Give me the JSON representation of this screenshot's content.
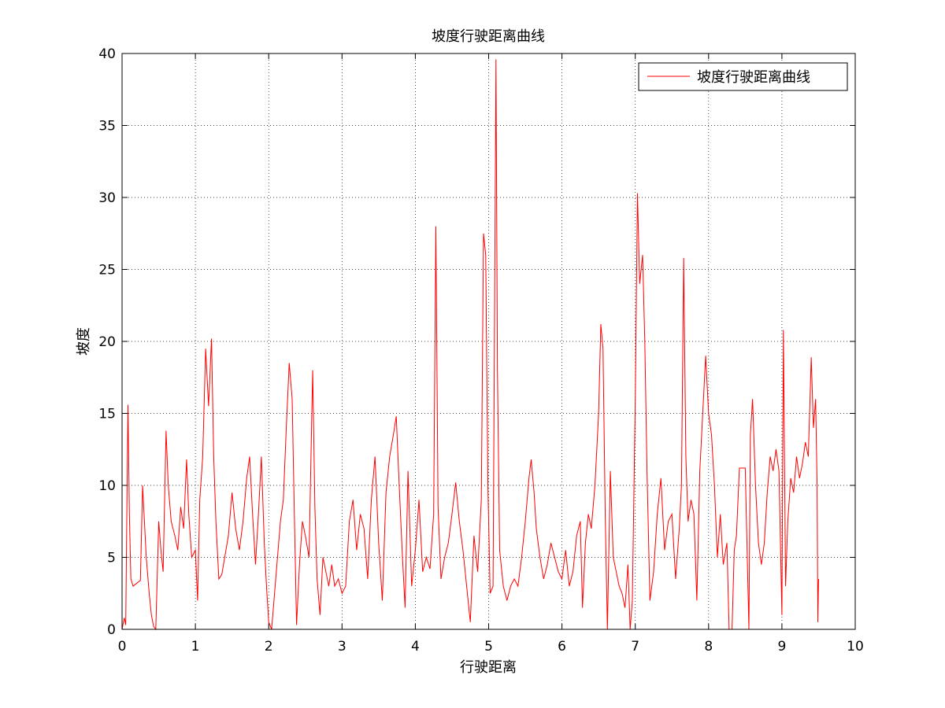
{
  "chart_data": {
    "type": "line",
    "title": "坡度行驶距离曲线",
    "xlabel": "行驶距离",
    "ylabel": "坡度",
    "xlim": [
      0,
      10
    ],
    "ylim": [
      0,
      40
    ],
    "xticks": [
      "0",
      "1",
      "2",
      "3",
      "4",
      "5",
      "6",
      "7",
      "8",
      "9",
      "10"
    ],
    "yticks": [
      "0",
      "5",
      "10",
      "15",
      "20",
      "25",
      "30",
      "35",
      "40"
    ],
    "grid": true,
    "legend_position": "top-right",
    "series": [
      {
        "name": "坡度行驶距离曲线",
        "color": "#ff0000",
        "points": [
          [
            0.0,
            0.0
          ],
          [
            0.03,
            0.8
          ],
          [
            0.05,
            0.3
          ],
          [
            0.08,
            15.6
          ],
          [
            0.1,
            8.0
          ],
          [
            0.12,
            3.5
          ],
          [
            0.15,
            3.0
          ],
          [
            0.2,
            3.2
          ],
          [
            0.25,
            3.4
          ],
          [
            0.28,
            10.0
          ],
          [
            0.3,
            8.0
          ],
          [
            0.33,
            5.0
          ],
          [
            0.37,
            2.5
          ],
          [
            0.4,
            1.0
          ],
          [
            0.43,
            0.2
          ],
          [
            0.46,
            0.0
          ],
          [
            0.5,
            7.5
          ],
          [
            0.53,
            5.5
          ],
          [
            0.56,
            4.0
          ],
          [
            0.6,
            13.8
          ],
          [
            0.63,
            10.0
          ],
          [
            0.67,
            7.5
          ],
          [
            0.72,
            6.5
          ],
          [
            0.76,
            5.5
          ],
          [
            0.8,
            8.5
          ],
          [
            0.84,
            7.0
          ],
          [
            0.88,
            11.8
          ],
          [
            0.91,
            8.0
          ],
          [
            0.95,
            5.0
          ],
          [
            1.0,
            5.5
          ],
          [
            1.03,
            2.0
          ],
          [
            1.06,
            9.0
          ],
          [
            1.1,
            12.0
          ],
          [
            1.14,
            19.5
          ],
          [
            1.18,
            15.5
          ],
          [
            1.22,
            20.2
          ],
          [
            1.25,
            12.0
          ],
          [
            1.28,
            7.5
          ],
          [
            1.32,
            3.5
          ],
          [
            1.36,
            3.8
          ],
          [
            1.4,
            5.0
          ],
          [
            1.45,
            6.5
          ],
          [
            1.5,
            9.5
          ],
          [
            1.55,
            7.0
          ],
          [
            1.6,
            5.5
          ],
          [
            1.65,
            7.5
          ],
          [
            1.7,
            10.5
          ],
          [
            1.74,
            12.0
          ],
          [
            1.78,
            8.0
          ],
          [
            1.82,
            4.5
          ],
          [
            1.86,
            8.0
          ],
          [
            1.9,
            12.0
          ],
          [
            1.94,
            6.0
          ],
          [
            1.97,
            3.0
          ],
          [
            2.0,
            0.5
          ],
          [
            2.04,
            0.0
          ],
          [
            2.08,
            2.5
          ],
          [
            2.12,
            5.0
          ],
          [
            2.16,
            7.5
          ],
          [
            2.2,
            9.0
          ],
          [
            2.24,
            14.0
          ],
          [
            2.28,
            18.5
          ],
          [
            2.32,
            16.0
          ],
          [
            2.35,
            8.0
          ],
          [
            2.38,
            0.3
          ],
          [
            2.42,
            4.5
          ],
          [
            2.46,
            7.5
          ],
          [
            2.5,
            6.5
          ],
          [
            2.55,
            5.0
          ],
          [
            2.6,
            18.0
          ],
          [
            2.63,
            8.5
          ],
          [
            2.66,
            3.5
          ],
          [
            2.7,
            1.0
          ],
          [
            2.74,
            5.0
          ],
          [
            2.78,
            4.0
          ],
          [
            2.82,
            3.0
          ],
          [
            2.86,
            4.5
          ],
          [
            2.9,
            3.0
          ],
          [
            2.95,
            3.5
          ],
          [
            3.0,
            2.5
          ],
          [
            3.05,
            3.0
          ],
          [
            3.1,
            7.5
          ],
          [
            3.15,
            9.0
          ],
          [
            3.2,
            5.5
          ],
          [
            3.25,
            8.0
          ],
          [
            3.3,
            7.0
          ],
          [
            3.35,
            3.5
          ],
          [
            3.4,
            9.0
          ],
          [
            3.45,
            12.0
          ],
          [
            3.5,
            6.0
          ],
          [
            3.55,
            2.0
          ],
          [
            3.6,
            9.5
          ],
          [
            3.65,
            12.0
          ],
          [
            3.7,
            13.5
          ],
          [
            3.74,
            14.8
          ],
          [
            3.78,
            10.0
          ],
          [
            3.82,
            5.5
          ],
          [
            3.86,
            1.5
          ],
          [
            3.9,
            11.0
          ],
          [
            3.95,
            3.0
          ],
          [
            4.0,
            5.5
          ],
          [
            4.05,
            9.0
          ],
          [
            4.1,
            4.0
          ],
          [
            4.15,
            5.0
          ],
          [
            4.2,
            4.2
          ],
          [
            4.25,
            8.0
          ],
          [
            4.28,
            28.0
          ],
          [
            4.31,
            8.5
          ],
          [
            4.35,
            3.5
          ],
          [
            4.4,
            5.0
          ],
          [
            4.45,
            6.0
          ],
          [
            4.5,
            8.0
          ],
          [
            4.55,
            10.2
          ],
          [
            4.6,
            7.5
          ],
          [
            4.65,
            5.5
          ],
          [
            4.7,
            3.0
          ],
          [
            4.75,
            0.5
          ],
          [
            4.8,
            6.5
          ],
          [
            4.85,
            4.0
          ],
          [
            4.9,
            9.0
          ],
          [
            4.93,
            27.5
          ],
          [
            4.96,
            26.0
          ],
          [
            4.99,
            10.0
          ],
          [
            5.02,
            2.5
          ],
          [
            5.06,
            3.0
          ],
          [
            5.1,
            39.6
          ],
          [
            5.12,
            18.0
          ],
          [
            5.15,
            5.5
          ],
          [
            5.2,
            3.0
          ],
          [
            5.25,
            2.0
          ],
          [
            5.3,
            3.0
          ],
          [
            5.35,
            3.5
          ],
          [
            5.4,
            3.0
          ],
          [
            5.45,
            5.0
          ],
          [
            5.5,
            7.5
          ],
          [
            5.55,
            10.5
          ],
          [
            5.58,
            11.8
          ],
          [
            5.62,
            9.5
          ],
          [
            5.65,
            7.0
          ],
          [
            5.7,
            5.0
          ],
          [
            5.75,
            3.5
          ],
          [
            5.8,
            4.5
          ],
          [
            5.85,
            6.0
          ],
          [
            5.9,
            5.0
          ],
          [
            5.95,
            4.0
          ],
          [
            6.0,
            3.5
          ],
          [
            6.05,
            5.5
          ],
          [
            6.1,
            3.0
          ],
          [
            6.15,
            4.0
          ],
          [
            6.2,
            6.5
          ],
          [
            6.25,
            7.5
          ],
          [
            6.28,
            1.5
          ],
          [
            6.32,
            6.0
          ],
          [
            6.36,
            8.0
          ],
          [
            6.4,
            7.0
          ],
          [
            6.45,
            10.0
          ],
          [
            6.5,
            15.0
          ],
          [
            6.53,
            21.2
          ],
          [
            6.56,
            19.5
          ],
          [
            6.59,
            8.0
          ],
          [
            6.62,
            0.0
          ],
          [
            6.66,
            11.0
          ],
          [
            6.7,
            5.0
          ],
          [
            6.74,
            4.0
          ],
          [
            6.78,
            3.0
          ],
          [
            6.82,
            2.5
          ],
          [
            6.86,
            1.5
          ],
          [
            6.9,
            4.5
          ],
          [
            6.93,
            0.0
          ],
          [
            6.96,
            2.0
          ],
          [
            7.0,
            16.0
          ],
          [
            7.03,
            30.3
          ],
          [
            7.06,
            24.0
          ],
          [
            7.1,
            26.0
          ],
          [
            7.13,
            20.0
          ],
          [
            7.16,
            11.0
          ],
          [
            7.2,
            2.0
          ],
          [
            7.25,
            4.0
          ],
          [
            7.3,
            8.0
          ],
          [
            7.35,
            10.5
          ],
          [
            7.4,
            5.5
          ],
          [
            7.45,
            7.5
          ],
          [
            7.5,
            8.0
          ],
          [
            7.55,
            3.5
          ],
          [
            7.6,
            7.0
          ],
          [
            7.63,
            10.0
          ],
          [
            7.66,
            25.8
          ],
          [
            7.69,
            12.0
          ],
          [
            7.72,
            7.5
          ],
          [
            7.76,
            9.0
          ],
          [
            7.8,
            8.0
          ],
          [
            7.84,
            2.0
          ],
          [
            7.88,
            11.0
          ],
          [
            7.92,
            15.0
          ],
          [
            7.96,
            19.0
          ],
          [
            8.0,
            15.0
          ],
          [
            8.04,
            13.5
          ],
          [
            8.08,
            10.0
          ],
          [
            8.12,
            5.0
          ],
          [
            8.16,
            8.0
          ],
          [
            8.2,
            4.5
          ],
          [
            8.25,
            6.0
          ],
          [
            8.28,
            0.0
          ],
          [
            8.32,
            0.0
          ],
          [
            8.35,
            5.5
          ],
          [
            8.38,
            6.5
          ],
          [
            8.42,
            11.2
          ],
          [
            8.5,
            11.2
          ],
          [
            8.55,
            0.0
          ],
          [
            8.57,
            13.5
          ],
          [
            8.6,
            16.0
          ],
          [
            8.64,
            10.0
          ],
          [
            8.68,
            6.0
          ],
          [
            8.72,
            4.5
          ],
          [
            8.76,
            6.0
          ],
          [
            8.8,
            9.5
          ],
          [
            8.84,
            12.0
          ],
          [
            8.88,
            11.0
          ],
          [
            8.92,
            12.5
          ],
          [
            8.96,
            11.0
          ],
          [
            9.0,
            1.0
          ],
          [
            9.02,
            20.8
          ],
          [
            9.05,
            3.0
          ],
          [
            9.08,
            7.5
          ],
          [
            9.12,
            10.5
          ],
          [
            9.16,
            9.5
          ],
          [
            9.2,
            12.0
          ],
          [
            9.24,
            10.5
          ],
          [
            9.28,
            11.5
          ],
          [
            9.32,
            13.0
          ],
          [
            9.36,
            12.0
          ],
          [
            9.4,
            18.9
          ],
          [
            9.43,
            14.0
          ],
          [
            9.46,
            16.0
          ],
          [
            9.48,
            10.0
          ],
          [
            9.49,
            0.5
          ],
          [
            9.5,
            3.5
          ]
        ]
      }
    ]
  }
}
